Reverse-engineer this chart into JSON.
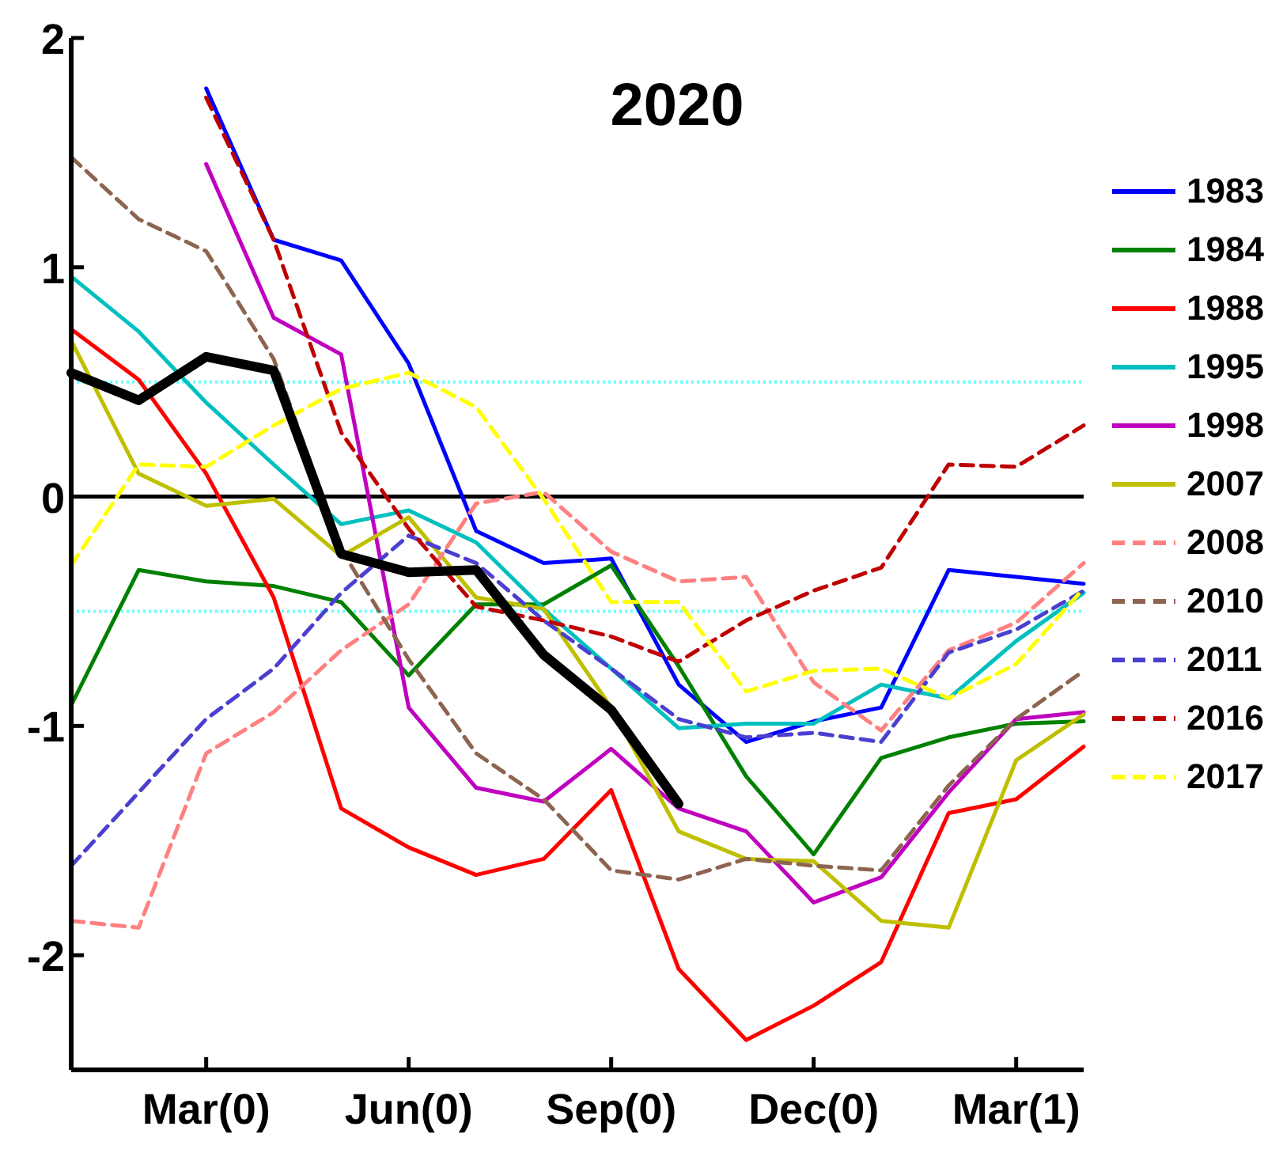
{
  "chart_data": {
    "type": "line",
    "title": "2020",
    "categories": [
      null,
      null,
      "Mar(0)",
      null,
      null,
      "Jun(0)",
      null,
      null,
      "Sep(0)",
      null,
      null,
      "Dec(0)",
      null,
      null,
      "Mar(1)",
      null
    ],
    "ylim": [
      -2.5,
      2
    ],
    "yticks": [
      -2,
      -1,
      0,
      1,
      2
    ],
    "grid": false,
    "legend": "right",
    "marker": "none",
    "ref_lines": [
      {
        "axis": "y",
        "value": 0,
        "color": "#000000",
        "line_style": "solid"
      },
      {
        "axis": "y",
        "value": 0.5,
        "color": "#66ffff",
        "line_style": "dotted"
      },
      {
        "axis": "y",
        "value": -0.5,
        "color": "#66ffff",
        "line_style": "dotted"
      }
    ],
    "series": [
      {
        "name": "1983",
        "color": "#0000ff",
        "line_style": "solid",
        "values": [
          null,
          null,
          1.78,
          1.12,
          1.03,
          0.58,
          -0.15,
          -0.29,
          -0.27,
          -0.82,
          -1.07,
          -0.98,
          -0.92,
          -0.32,
          -0.35,
          -0.38
        ]
      },
      {
        "name": "1984",
        "color": "#008000",
        "line_style": "solid",
        "values": [
          -0.91,
          -0.32,
          -0.37,
          -0.39,
          -0.46,
          -0.78,
          -0.47,
          -0.47,
          -0.3,
          -0.74,
          -1.22,
          -1.56,
          -1.14,
          -1.05,
          -0.99,
          -0.98
        ]
      },
      {
        "name": "1988",
        "color": "#ff0000",
        "line_style": "solid",
        "values": [
          0.73,
          0.51,
          0.1,
          -0.44,
          -1.36,
          -1.53,
          -1.65,
          -1.58,
          -1.28,
          -2.06,
          -2.37,
          -2.22,
          -2.03,
          -1.38,
          -1.32,
          -1.09
        ]
      },
      {
        "name": "1995",
        "color": "#00bfbf",
        "line_style": "solid",
        "values": [
          0.96,
          0.72,
          0.41,
          0.14,
          -0.12,
          -0.06,
          -0.2,
          -0.49,
          -0.75,
          -1.01,
          -0.99,
          -0.99,
          -0.82,
          -0.88,
          -0.63,
          -0.42
        ]
      },
      {
        "name": "1998",
        "color": "#bf00bf",
        "line_style": "solid",
        "values": [
          null,
          null,
          1.45,
          0.78,
          0.62,
          -0.92,
          -1.27,
          -1.33,
          -1.1,
          -1.36,
          -1.46,
          -1.77,
          -1.66,
          -1.29,
          -0.97,
          -0.94
        ]
      },
      {
        "name": "2007",
        "color": "#bfbf00",
        "line_style": "solid",
        "values": [
          0.68,
          0.1,
          -0.04,
          -0.01,
          -0.26,
          -0.09,
          -0.44,
          -0.49,
          -0.92,
          -1.46,
          -1.58,
          -1.59,
          -1.85,
          -1.88,
          -1.15,
          -0.95
        ]
      },
      {
        "name": "2008",
        "color": "#ff8080",
        "line_style": "dashed",
        "values": [
          -1.85,
          -1.88,
          -1.12,
          -0.94,
          -0.67,
          -0.47,
          -0.03,
          0.02,
          -0.24,
          -0.37,
          -0.35,
          -0.81,
          -1.02,
          -0.67,
          -0.55,
          -0.29
        ]
      },
      {
        "name": "2010",
        "color": "#8c6450",
        "line_style": "dashed",
        "values": [
          1.48,
          1.21,
          1.07,
          0.6,
          -0.23,
          -0.71,
          -1.12,
          -1.32,
          -1.63,
          -1.67,
          -1.58,
          -1.61,
          -1.63,
          -1.26,
          -0.97,
          -0.76
        ]
      },
      {
        "name": "2011",
        "color": "#4b3fd0",
        "line_style": "dashed",
        "values": [
          -1.61,
          -1.29,
          -0.97,
          -0.75,
          -0.42,
          -0.17,
          -0.29,
          -0.54,
          -0.75,
          -0.97,
          -1.05,
          -1.03,
          -1.07,
          -0.68,
          -0.58,
          -0.41
        ]
      },
      {
        "name": "2016",
        "color": "#bf0000",
        "line_style": "dashed",
        "values": [
          null,
          null,
          1.74,
          1.12,
          0.28,
          -0.14,
          -0.48,
          -0.54,
          -0.61,
          -0.72,
          -0.54,
          -0.41,
          -0.31,
          0.14,
          0.13,
          0.31
        ]
      },
      {
        "name": "2017",
        "color": "#ffff00",
        "line_style": "dashed",
        "values": [
          -0.3,
          0.14,
          0.13,
          0.31,
          0.47,
          0.54,
          0.39,
          -0.01,
          -0.46,
          -0.46,
          -0.85,
          -0.76,
          -0.75,
          -0.88,
          -0.73,
          -0.4
        ]
      },
      {
        "color": "#000000",
        "line_style": "solid",
        "values": [
          0.54,
          0.42,
          0.61,
          0.55,
          -0.25,
          -0.33,
          -0.32,
          -0.69,
          -0.93,
          -1.34,
          null,
          null,
          null,
          null,
          null,
          null
        ]
      }
    ]
  }
}
